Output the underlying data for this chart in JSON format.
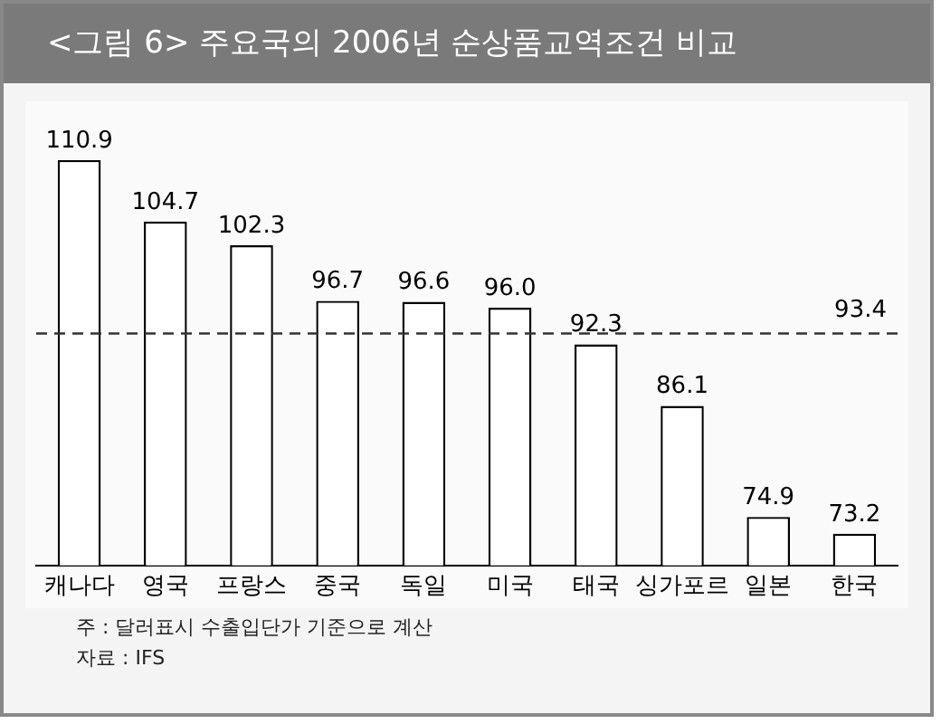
{
  "chart_data": {
    "type": "bar",
    "title": "<그림 6> 주요국의 2006년 순상품교역조건 비교",
    "categories": [
      "캐나다",
      "영국",
      "프랑스",
      "중국",
      "독일",
      "미국",
      "태국",
      "싱가포르",
      "일본",
      "한국"
    ],
    "values": [
      110.9,
      104.7,
      102.3,
      96.7,
      96.6,
      96.0,
      92.3,
      86.1,
      74.9,
      73.2
    ],
    "color": "#ffffff",
    "value_labels": [
      "110.9",
      "104.7",
      "102.3",
      "96.7",
      "96.6",
      "96.0",
      "92.3",
      "86.1",
      "74.9",
      "73.2"
    ],
    "grid": false,
    "legend": false,
    "tick_labels": "x",
    "ref_lines": [
      {
        "axis": "y",
        "value": 93.4,
        "label": "93.4",
        "color": "#333333",
        "line_style": "dashed"
      }
    ],
    "annotations": [
      "주 : 달러표시 수출입단가 기준으로 계산",
      "자료 : IFS"
    ]
  }
}
